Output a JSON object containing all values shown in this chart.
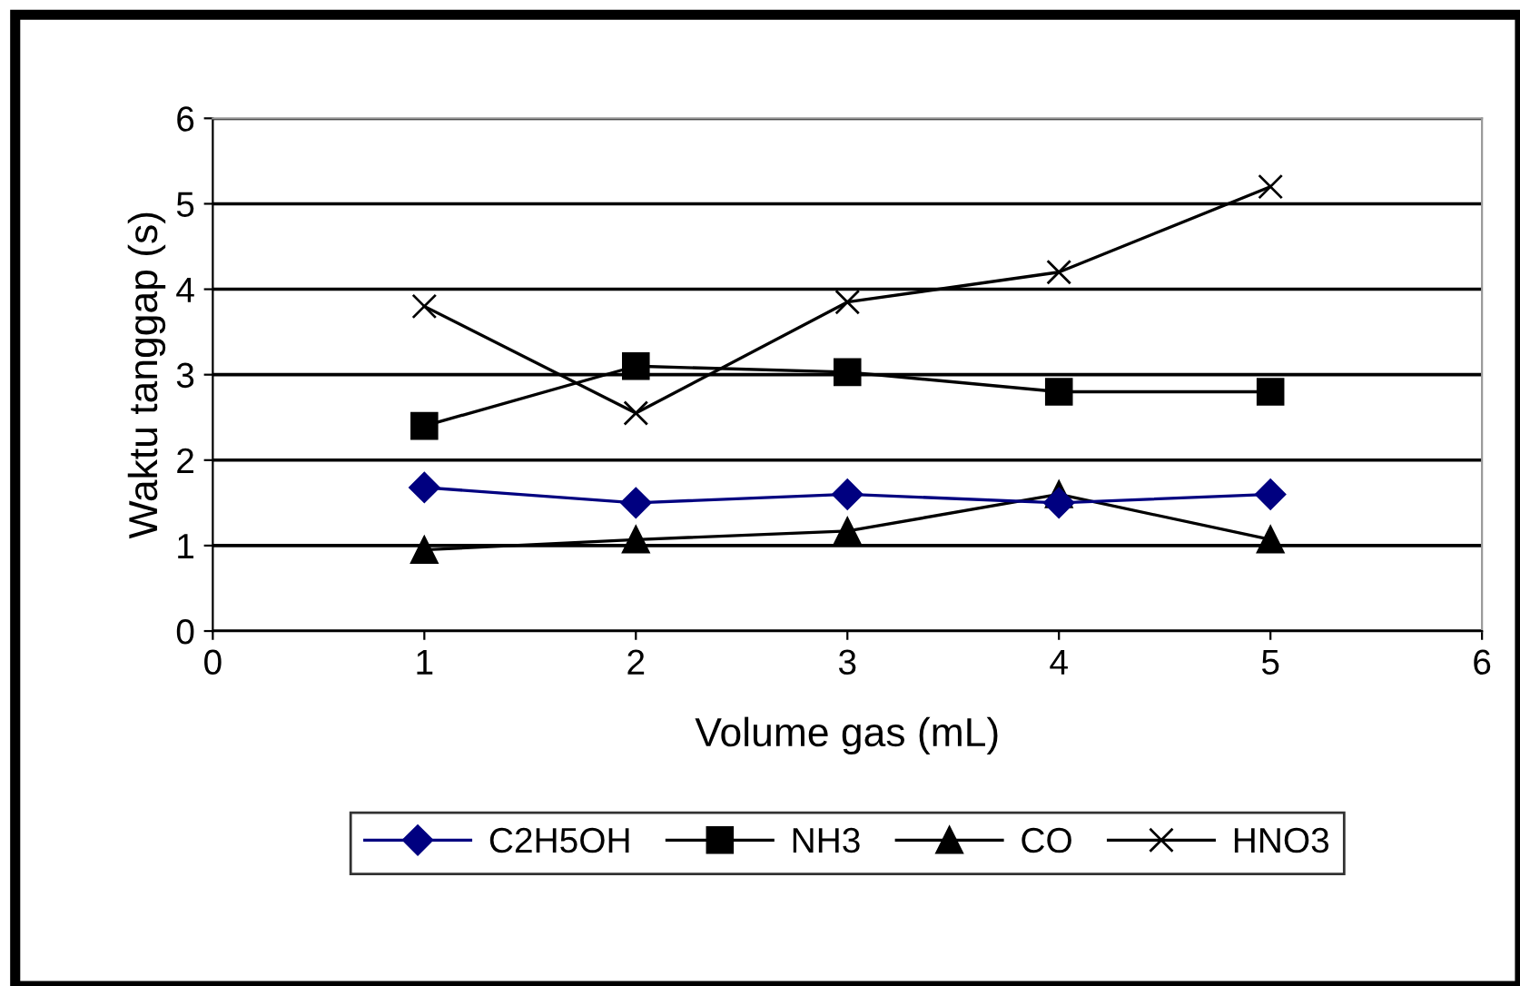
{
  "chart_data": {
    "type": "line",
    "xlabel": "Volume gas (mL)",
    "ylabel": "Waktu tanggap (s)",
    "x": [
      1,
      2,
      3,
      4,
      5
    ],
    "series": [
      {
        "name": "C2H5OH",
        "color": "#000080",
        "marker": "diamond",
        "values": [
          1.68,
          1.5,
          1.6,
          1.5,
          1.6
        ]
      },
      {
        "name": "NH3",
        "color": "#000000",
        "marker": "square",
        "values": [
          2.4,
          3.1,
          3.03,
          2.8,
          2.8
        ]
      },
      {
        "name": "CO",
        "color": "#000000",
        "marker": "triangle",
        "values": [
          0.95,
          1.07,
          1.17,
          1.6,
          1.07
        ]
      },
      {
        "name": "HNO3",
        "color": "#000000",
        "marker": "cross",
        "values": [
          3.8,
          2.55,
          3.85,
          4.2,
          5.2
        ]
      }
    ],
    "xlim": [
      0,
      6
    ],
    "xticks": [
      0,
      1,
      2,
      3,
      4,
      5,
      6
    ],
    "ylim": [
      0,
      6
    ],
    "yticks": [
      0,
      1,
      2,
      3,
      4,
      5,
      6
    ],
    "grid": "y",
    "legend": "bottom"
  }
}
